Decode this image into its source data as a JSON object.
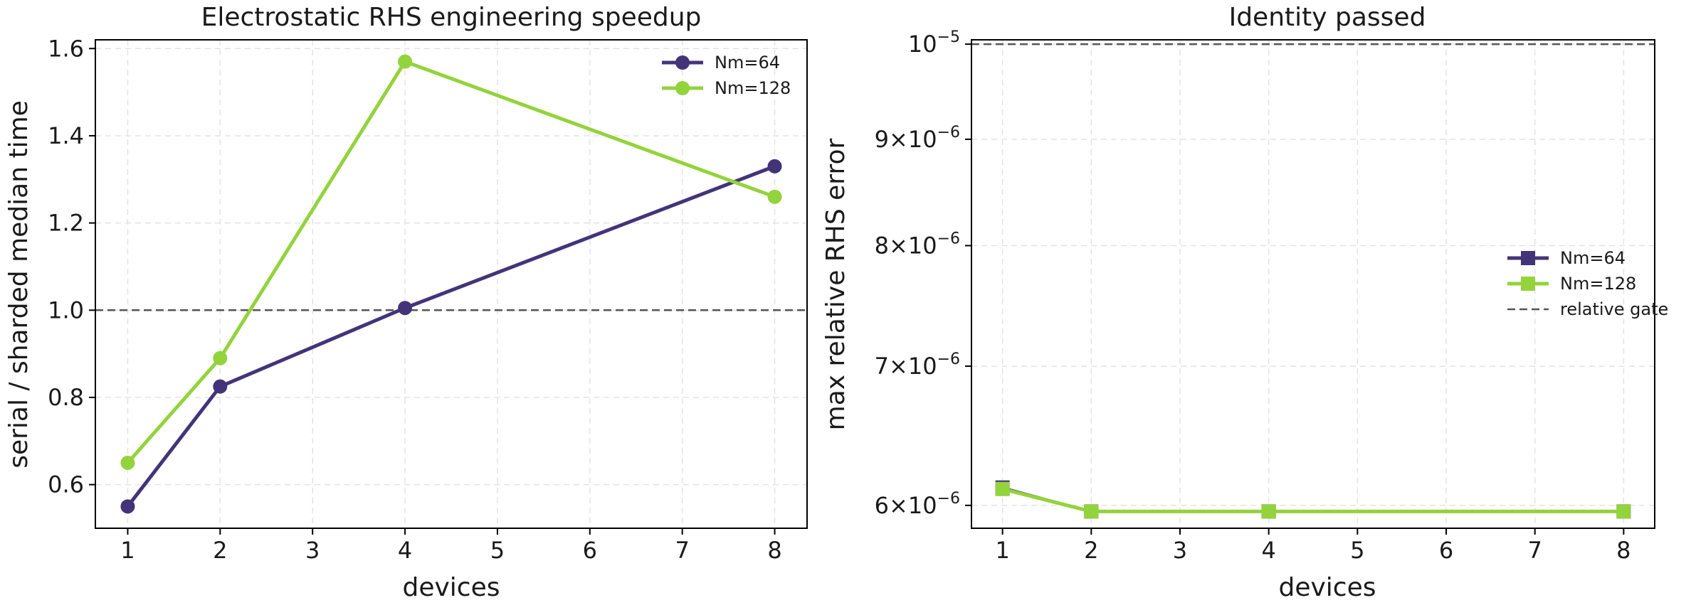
{
  "chart_data": [
    {
      "type": "line",
      "title": "Electrostatic RHS engineering speedup",
      "xlabel": "devices",
      "ylabel": "serial / sharded median time",
      "x": [
        1,
        2,
        4,
        8
      ],
      "series": [
        {
          "name": "Nm=64",
          "color": "#433479",
          "marker": "circle",
          "values": [
            0.55,
            0.825,
            1.005,
            1.33
          ]
        },
        {
          "name": "Nm=128",
          "color": "#93d33c",
          "marker": "circle",
          "values": [
            0.65,
            0.89,
            1.57,
            1.26
          ]
        }
      ],
      "reference_line": {
        "y": 1.0,
        "style": "dashed",
        "color": "#555555"
      },
      "xlim": [
        0.65,
        8.35
      ],
      "ylim": [
        0.5,
        1.62
      ],
      "xticks": [
        1,
        2,
        3,
        4,
        5,
        6,
        7,
        8
      ],
      "yticks": [
        0.6,
        0.8,
        1.0,
        1.2,
        1.4,
        1.6
      ],
      "ytick_labels": [
        "0.6",
        "0.8",
        "1.0",
        "1.2",
        "1.4",
        "1.6"
      ],
      "grid": true,
      "legend": "top-right"
    },
    {
      "type": "line",
      "title": "Identity passed",
      "xlabel": "devices",
      "ylabel": "max relative RHS error",
      "yscale": "log",
      "x": [
        1,
        2,
        4,
        8
      ],
      "series": [
        {
          "name": "Nm=64",
          "color": "#433479",
          "marker": "square",
          "values": [
            6.12e-06,
            5.96e-06,
            5.96e-06,
            5.96e-06
          ]
        },
        {
          "name": "Nm=128",
          "color": "#93d33c",
          "marker": "square",
          "values": [
            6.11e-06,
            5.96e-06,
            5.96e-06,
            5.96e-06
          ]
        }
      ],
      "reference_line": {
        "y": 1e-05,
        "style": "dashed",
        "color": "#555555",
        "name": "relative gate"
      },
      "xlim": [
        0.65,
        8.35
      ],
      "ylim": [
        5.85e-06,
        1.0048e-05
      ],
      "xticks": [
        1,
        2,
        3,
        4,
        5,
        6,
        7,
        8
      ],
      "yticks": [
        {
          "value": 6e-06,
          "mantissa": "6",
          "exp": "−6"
        },
        {
          "value": 7e-06,
          "mantissa": "7",
          "exp": "−6"
        },
        {
          "value": 8e-06,
          "mantissa": "8",
          "exp": "−6"
        },
        {
          "value": 9e-06,
          "mantissa": "9",
          "exp": "−6"
        },
        {
          "value": 1e-05,
          "mantissa": "",
          "exp": "−5"
        }
      ],
      "grid": true,
      "legend": "center-right"
    }
  ]
}
